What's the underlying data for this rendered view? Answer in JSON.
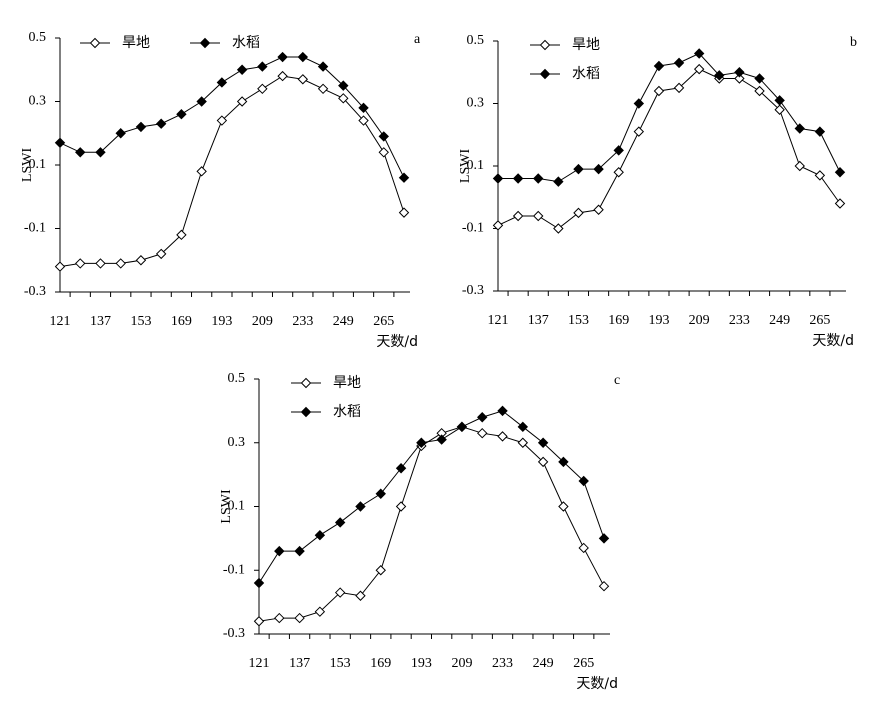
{
  "chart_data": [
    {
      "type": "line",
      "label": "a",
      "y_label": "LSWI",
      "x_label": "天数/d",
      "legend": "top",
      "categories": [
        "121",
        null,
        "137",
        null,
        "153",
        null,
        "169",
        null,
        "193",
        null,
        "209",
        null,
        "233",
        null,
        "249",
        null,
        "265",
        null
      ],
      "ylim": [
        -0.3,
        0.5
      ],
      "yticks": [
        -0.3,
        -0.1,
        0.1,
        0.3,
        0.5
      ],
      "series": [
        {
          "name": "旱地",
          "color": "#000000",
          "marker": "diamond-open",
          "values": [
            -0.22,
            -0.21,
            -0.21,
            -0.21,
            -0.2,
            -0.18,
            -0.12,
            0.08,
            0.24,
            0.3,
            0.34,
            0.38,
            0.37,
            0.34,
            0.31,
            0.24,
            0.14,
            -0.05
          ]
        },
        {
          "name": "水稻",
          "color": "#000000",
          "marker": "diamond-filled",
          "values": [
            0.17,
            0.14,
            0.14,
            0.2,
            0.22,
            0.23,
            0.26,
            0.3,
            0.36,
            0.4,
            0.41,
            0.44,
            0.44,
            0.41,
            0.35,
            0.28,
            0.19,
            0.06
          ]
        }
      ]
    },
    {
      "type": "line",
      "label": "b",
      "y_label": "LSWI",
      "x_label": "天数/d",
      "legend": "top-left",
      "categories": [
        "121",
        null,
        "137",
        null,
        "153",
        null,
        "169",
        null,
        "193",
        null,
        "209",
        null,
        "233",
        null,
        "249",
        null,
        "265",
        null
      ],
      "ylim": [
        -0.3,
        0.5
      ],
      "yticks": [
        -0.3,
        -0.1,
        0.1,
        0.3,
        0.5
      ],
      "series": [
        {
          "name": "旱地",
          "color": "#000000",
          "marker": "diamond-open",
          "values": [
            -0.09,
            -0.06,
            -0.06,
            -0.1,
            -0.05,
            -0.04,
            0.08,
            0.21,
            0.34,
            0.35,
            0.41,
            0.38,
            0.38,
            0.34,
            0.28,
            0.1,
            0.07,
            -0.02
          ]
        },
        {
          "name": "水稻",
          "color": "#000000",
          "marker": "diamond-filled",
          "values": [
            0.06,
            0.06,
            0.06,
            0.05,
            0.09,
            0.09,
            0.15,
            0.3,
            0.42,
            0.43,
            0.46,
            0.39,
            0.4,
            0.38,
            0.31,
            0.22,
            0.21,
            0.08
          ]
        }
      ]
    },
    {
      "type": "line",
      "label": "c",
      "y_label": "LSWI",
      "x_label": "天数/d",
      "legend": "top-left",
      "categories": [
        "121",
        null,
        "137",
        null,
        "153",
        null,
        "169",
        null,
        "193",
        null,
        "209",
        null,
        "233",
        null,
        "249",
        null,
        "265",
        null
      ],
      "ylim": [
        -0.3,
        0.5
      ],
      "yticks": [
        -0.3,
        -0.1,
        0.1,
        0.3,
        0.5
      ],
      "series": [
        {
          "name": "旱地",
          "color": "#000000",
          "marker": "diamond-open",
          "values": [
            -0.26,
            -0.25,
            -0.25,
            -0.23,
            -0.17,
            -0.18,
            -0.1,
            0.1,
            0.29,
            0.33,
            0.35,
            0.33,
            0.32,
            0.3,
            0.24,
            0.1,
            -0.03,
            -0.15
          ]
        },
        {
          "name": "水稻",
          "color": "#000000",
          "marker": "diamond-filled",
          "values": [
            -0.14,
            -0.04,
            -0.04,
            0.01,
            0.05,
            0.1,
            0.14,
            0.22,
            0.3,
            0.31,
            0.35,
            0.38,
            0.4,
            0.35,
            0.3,
            0.24,
            0.18,
            0.0
          ]
        }
      ]
    }
  ]
}
